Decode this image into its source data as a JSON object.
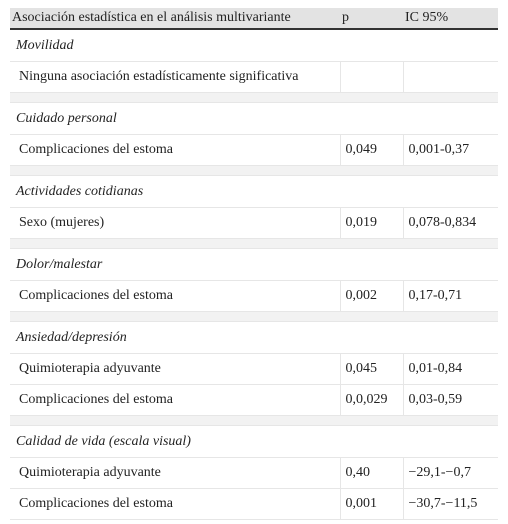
{
  "header": [
    "Asociación estadística en el análisis multivariante",
    "p",
    "IC 95%"
  ],
  "sections": [
    {
      "title": "Movilidad",
      "rows": [
        [
          "Ninguna asociación estadísticamente significativa"
        ]
      ]
    },
    {
      "title": "Cuidado personal",
      "rows": [
        [
          "Complicaciones del estoma",
          "0,049",
          "0,001-0,37"
        ]
      ]
    },
    {
      "title": "Actividades cotidianas",
      "rows": [
        [
          "Sexo (mujeres)",
          "0,019",
          "0,078-0,834"
        ]
      ]
    },
    {
      "title": "Dolor/malestar",
      "rows": [
        [
          "Complicaciones del estoma",
          "0,002",
          "0,17-0,71"
        ]
      ]
    },
    {
      "title": "Ansiedad/depresión",
      "rows": [
        [
          "Quimioterapia adyuvante",
          "0,045",
          "0,01-0,84"
        ],
        [
          "Complicaciones del estoma",
          "0,0,029",
          "0,03-0,59"
        ]
      ]
    },
    {
      "title": "Calidad de vida (escala visual)",
      "rows": [
        [
          "Quimioterapia adyuvante",
          "0,40",
          "−29,1-−0,7"
        ],
        [
          "Complicaciones del estoma",
          "0,001",
          "−30,7-−11,5"
        ]
      ]
    }
  ]
}
